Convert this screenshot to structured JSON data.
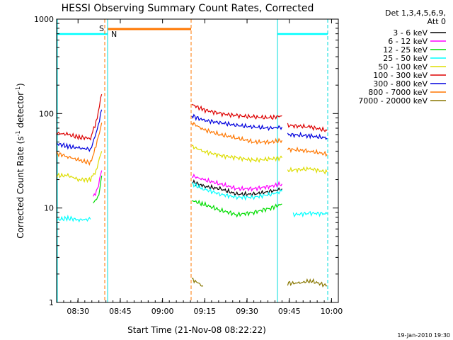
{
  "chart_data": {
    "type": "line",
    "title": "HESSI Observing Summary Count Rates, Corrected",
    "xlabel": "Start Time (21-Nov-08 08:22:22)",
    "ylabel_main": "Corrected Count Rate (s",
    "ylabel_sup1": "-1",
    "ylabel_mid": " detector",
    "ylabel_sup2": "-1",
    "ylabel_end": ")",
    "yscale": "log",
    "ylim": [
      1,
      1000
    ],
    "xlim_minutes": [
      0,
      100
    ],
    "x_ticks": [
      {
        "label": "08:30",
        "t": 7.6
      },
      {
        "label": "08:45",
        "t": 22.6
      },
      {
        "label": "09:00",
        "t": 37.6
      },
      {
        "label": "09:15",
        "t": 52.6
      },
      {
        "label": "09:30",
        "t": 67.6
      },
      {
        "label": "09:45",
        "t": 82.6
      },
      {
        "label": "10:00",
        "t": 97.6
      }
    ],
    "y_ticks": [
      {
        "label": "1",
        "v": 1
      },
      {
        "label": "10",
        "v": 10
      },
      {
        "label": "100",
        "v": 100
      },
      {
        "label": "1000",
        "v": 1000
      }
    ],
    "legend_header": [
      "Det 1,3,4,5,6,9,",
      "Att 0"
    ],
    "legend_position": "right",
    "series": [
      {
        "name": "3 - 6 keV",
        "color": "#000000",
        "segments": [
          [
            [
              48,
              19
            ],
            [
              52,
              17
            ],
            [
              58,
              16
            ],
            [
              64,
              14
            ],
            [
              70,
              14
            ],
            [
              76,
              15
            ],
            [
              80,
              16
            ]
          ]
        ]
      },
      {
        "name": "6 - 12 keV",
        "color": "#ff00ff",
        "segments": [
          [
            [
              13,
              13
            ],
            [
              14.5,
              16
            ],
            [
              16,
              25
            ]
          ],
          [
            [
              48,
              22
            ],
            [
              52,
              20
            ],
            [
              58,
              18
            ],
            [
              64,
              16
            ],
            [
              70,
              16
            ],
            [
              76,
              17
            ],
            [
              80,
              18
            ]
          ]
        ]
      },
      {
        "name": "12 - 25 keV",
        "color": "#00dd00",
        "segments": [
          [
            [
              13,
              11
            ],
            [
              15,
              14
            ],
            [
              16,
              22
            ]
          ],
          [
            [
              48,
              12
            ],
            [
              52,
              11
            ],
            [
              58,
              9.5
            ],
            [
              64,
              8.5
            ],
            [
              70,
              9
            ],
            [
              76,
              10
            ],
            [
              80,
              11
            ]
          ]
        ]
      },
      {
        "name": "25 - 50 keV",
        "color": "#00ffff",
        "segments": [
          [
            [
              0,
              7.5
            ],
            [
              4,
              7.8
            ],
            [
              8,
              7.5
            ],
            [
              12,
              7.6
            ]
          ],
          [
            [
              48,
              18
            ],
            [
              52,
              16
            ],
            [
              58,
              14
            ],
            [
              64,
              13
            ],
            [
              70,
              13
            ],
            [
              76,
              14
            ],
            [
              80,
              15
            ]
          ],
          [
            [
              84,
              8.5
            ],
            [
              90,
              8.8
            ],
            [
              96,
              8.7
            ]
          ]
        ]
      },
      {
        "name": "50 - 100 keV",
        "color": "#dddd00",
        "segments": [
          [
            [
              0,
              22
            ],
            [
              4,
              22
            ],
            [
              8,
              20
            ],
            [
              12,
              20
            ],
            [
              14,
              25
            ],
            [
              16,
              40
            ]
          ],
          [
            [
              48,
              45
            ],
            [
              52,
              40
            ],
            [
              58,
              36
            ],
            [
              64,
              34
            ],
            [
              70,
              32
            ],
            [
              76,
              33
            ],
            [
              80,
              34
            ]
          ],
          [
            [
              82,
              25
            ],
            [
              90,
              26
            ],
            [
              96,
              24
            ]
          ]
        ]
      },
      {
        "name": "100 - 300 keV",
        "color": "#dd0000",
        "segments": [
          [
            [
              0,
              62
            ],
            [
              4,
              60
            ],
            [
              8,
              56
            ],
            [
              12,
              55
            ],
            [
              14,
              80
            ],
            [
              16,
              160
            ]
          ],
          [
            [
              48,
              125
            ],
            [
              52,
              110
            ],
            [
              58,
              100
            ],
            [
              64,
              95
            ],
            [
              70,
              92
            ],
            [
              76,
              90
            ],
            [
              80,
              95
            ]
          ],
          [
            [
              82,
              75
            ],
            [
              90,
              72
            ],
            [
              96,
              66
            ]
          ]
        ]
      },
      {
        "name": "300 - 800 keV",
        "color": "#0000dd",
        "segments": [
          [
            [
              0,
              48
            ],
            [
              4,
              45
            ],
            [
              8,
              43
            ],
            [
              12,
              42
            ],
            [
              14,
              60
            ],
            [
              16,
              110
            ]
          ],
          [
            [
              48,
              95
            ],
            [
              52,
              85
            ],
            [
              58,
              80
            ],
            [
              64,
              75
            ],
            [
              70,
              72
            ],
            [
              76,
              70
            ],
            [
              80,
              72
            ]
          ],
          [
            [
              82,
              60
            ],
            [
              90,
              58
            ],
            [
              96,
              55
            ]
          ]
        ]
      },
      {
        "name": "800 - 7000 keV",
        "color": "#ff7700",
        "segments": [
          [
            [
              0,
              38
            ],
            [
              4,
              35
            ],
            [
              8,
              32
            ],
            [
              12,
              30
            ],
            [
              14,
              45
            ],
            [
              16,
              80
            ]
          ],
          [
            [
              48,
              80
            ],
            [
              52,
              68
            ],
            [
              58,
              60
            ],
            [
              64,
              55
            ],
            [
              70,
              50
            ],
            [
              76,
              50
            ],
            [
              80,
              52
            ]
          ],
          [
            [
              82,
              42
            ],
            [
              90,
              40
            ],
            [
              96,
              37
            ]
          ]
        ]
      },
      {
        "name": "7000 - 20000 keV",
        "color": "#887700",
        "segments": [
          [
            [
              48,
              1.8
            ],
            [
              50,
              1.6
            ],
            [
              52,
              1.5
            ]
          ],
          [
            [
              82,
              1.6
            ],
            [
              86,
              1.6
            ],
            [
              90,
              1.7
            ],
            [
              96,
              1.5
            ]
          ]
        ]
      }
    ],
    "annotations": [
      {
        "text": "S",
        "color": "#ff7700"
      },
      {
        "text": "N",
        "color": "#00dddd"
      }
    ],
    "timestamp": "19-Jan-2010 19:30"
  }
}
